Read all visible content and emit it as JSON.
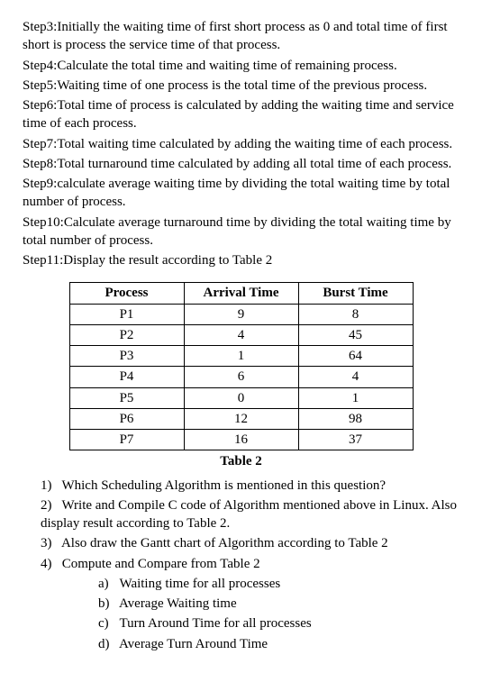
{
  "steps": [
    "Step3:Initially the waiting time of first short process as 0 and total time of first short is process the service time of that process.",
    "Step4:Calculate the total time and waiting time of remaining process.",
    "Step5:Waiting time of one process is the total time of the previous process.",
    "Step6:Total time of process is calculated by adding the waiting time and service time of each process.",
    "Step7:Total waiting time calculated by adding the waiting time of each process.",
    "Step8:Total turnaround time calculated by adding all total time of each process.",
    "Step9:calculate average waiting time by dividing the total waiting time by total number of process.",
    "Step10:Calculate average turnaround time by dividing the total waiting time by total number of process.",
    "Step11:Display the result according to Table 2"
  ],
  "table": {
    "headers": [
      "Process",
      "Arrival Time",
      "Burst Time"
    ],
    "rows": [
      [
        "P1",
        "9",
        "8"
      ],
      [
        "P2",
        "4",
        "45"
      ],
      [
        "P3",
        "1",
        "64"
      ],
      [
        "P4",
        "6",
        "4"
      ],
      [
        "P5",
        "0",
        "1"
      ],
      [
        "P6",
        "12",
        "98"
      ],
      [
        "P7",
        "16",
        "37"
      ]
    ],
    "caption": "Table 2"
  },
  "questions": {
    "main": [
      {
        "num": "1)",
        "text": "Which Scheduling Algorithm is mentioned in this question?"
      },
      {
        "num": "2)",
        "text": "Write and Compile C code of Algorithm mentioned above in Linux. Also display result according to Table 2."
      },
      {
        "num": "3)",
        "text": "Also draw the Gantt chart of Algorithm according to Table 2"
      },
      {
        "num": "4)",
        "text": "Compute and Compare from Table 2"
      }
    ],
    "sub": [
      {
        "num": "a)",
        "text": "Waiting time for all processes"
      },
      {
        "num": "b)",
        "text": "Average Waiting time"
      },
      {
        "num": "c)",
        "text": "Turn Around Time for all processes"
      },
      {
        "num": "d)",
        "text": "Average Turn Around Time"
      }
    ]
  }
}
